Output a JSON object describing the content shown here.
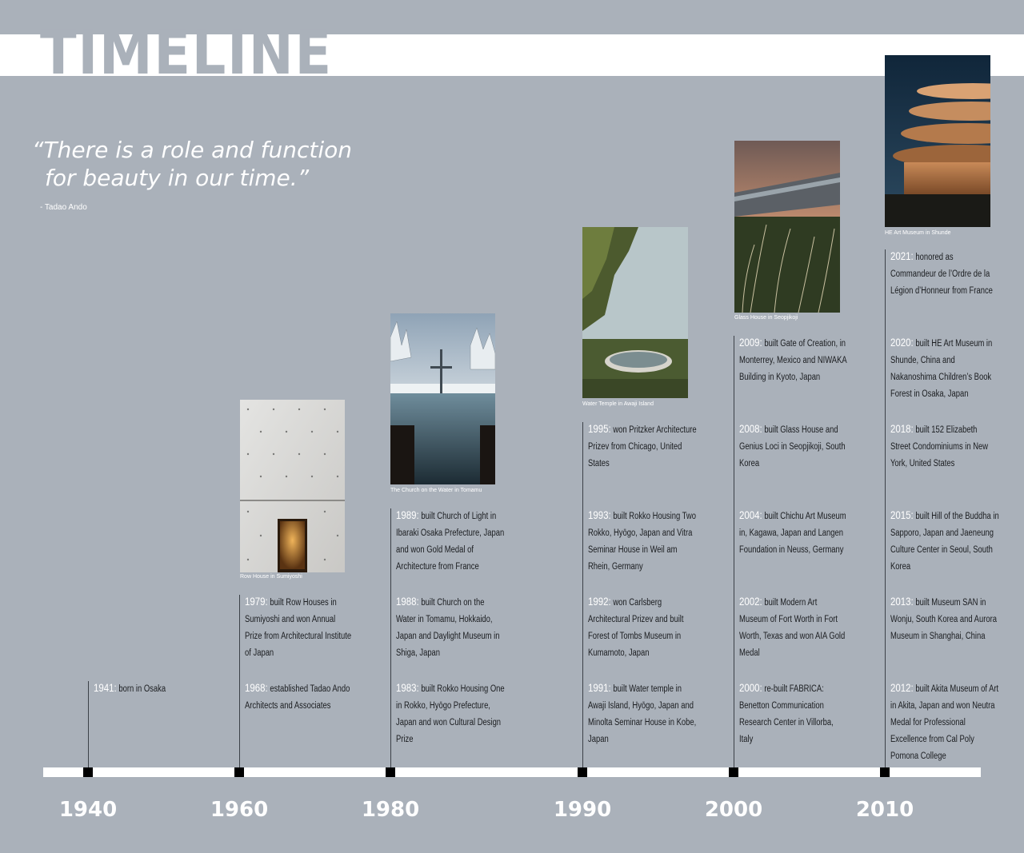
{
  "title": "TIMELINE",
  "quote": {
    "line1": "“There is a role and function",
    "line2": "for beauty in our time.”",
    "author": "- Tadao Ando"
  },
  "captions": {
    "row_house": "Row House in Sumiyoshi",
    "church_water": "The Church on the Water in Tomamu",
    "water_temple": "Water Temple in Awaji Island",
    "glass_house": "Glass House in Seopjikoji",
    "he_museum": "HE Art Museum in Shunde"
  },
  "events": {
    "e1941": {
      "year": "1941:",
      "text": "born in Osaka"
    },
    "e1968": {
      "year": "1968:",
      "text": "established Tadao Ando Architects and Associates"
    },
    "e1979": {
      "year": "1979:",
      "text": "built Row Houses in Sumiyoshi and won Annual Prize from Architectural Institute of Japan"
    },
    "e1983": {
      "year": "1983:",
      "text": "built Rokko Housing One in Rokko, Hyōgo Prefecture, Japan and won Cultural Design Prize"
    },
    "e1988": {
      "year": "1988:",
      "text": "built Church on the Water in Tomamu, Hokkaido, Japan and Daylight Museum in Shiga, Japan"
    },
    "e1989": {
      "year": "1989:",
      "text": "built Church of Light in Ibaraki Osaka Prefecture, Japan and won Gold Medal of Architecture from France"
    },
    "e1991": {
      "year": "1991:",
      "text": "built Water temple in Awaji Island, Hyōgo, Japan and Minolta Seminar House in Kobe, Japan"
    },
    "e1992": {
      "year": "1992:",
      "text": "won Carlsberg Architectural Prizev and built Forest of Tombs Museum in Kumamoto, Japan"
    },
    "e1993": {
      "year": "1993:",
      "text": "built Rokko Housing Two Rokko, Hyōgo, Japan and Vitra Seminar House in Weil am Rhein, Germany"
    },
    "e1995": {
      "year": "1995:",
      "text": "won Pritzker Architecture Prizev from Chicago, United States"
    },
    "e2000": {
      "year": "2000:",
      "text": "re-built FABRICA: Benetton Communication Research Center in Villorba, Italy"
    },
    "e2002": {
      "year": "2002:",
      "text": "built  Modern Art Museum of Fort Worth in Fort Worth, Texas and won AIA Gold Medal"
    },
    "e2004": {
      "year": "2004:",
      "text": "built Chichu Art Museum in, Kagawa, Japan and Langen Foundation in Neuss, Germany"
    },
    "e2008": {
      "year": "2008:",
      "text": "built Glass House and Genius Loci in Seopjikoji, South Korea"
    },
    "e2009": {
      "year": "2009:",
      "text": "built Gate of Creation, in Monterrey, Mexico and NIWAKA Building in Kyoto, Japan"
    },
    "e2012": {
      "year": "2012:",
      "text": "built Akita Museum of Art in Akita, Japan and won Neutra Medal for Professional Excellence from Cal Poly Pomona College"
    },
    "e2013": {
      "year": "2013:",
      "text": "built Museum SAN in Wonju, South Korea and Aurora Museum in Shanghai, China"
    },
    "e2015": {
      "year": "2015:",
      "text": "built Hill of the Buddha in Sapporo, Japan and Jaeneung Culture Center in Seoul, South Korea"
    },
    "e2018": {
      "year": "2018:",
      "text": "built 152 Elizabeth Street Condominiums in New York, United States"
    },
    "e2020": {
      "year": "2020:",
      "text": "built HE Art Museum in Shunde, China and Nakanoshima Children’s Book Forest in Osaka, Japan"
    },
    "e2021": {
      "year": "2021:",
      "text": "honored as Commandeur de l’Ordre de la Légion d’Honneur from France"
    }
  },
  "decades": [
    "1940",
    "1960",
    "1980",
    "1990",
    "2000",
    "2010"
  ],
  "colors": {
    "background": "#aab1ba",
    "band": "#ffffff",
    "line": "#3c4148",
    "tick": "#000000"
  }
}
